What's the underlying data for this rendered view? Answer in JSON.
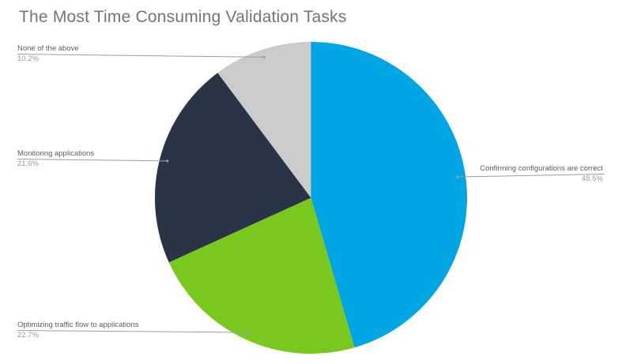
{
  "title": "The Most Time Consuming Validation Tasks",
  "chart_data": {
    "type": "pie",
    "title": "The Most Time Consuming Validation Tasks",
    "start_angle_deg": 0,
    "direction": "clockwise",
    "legend_position": "labeled-callouts",
    "background_color": "#ffffff",
    "title_color": "#757575",
    "leader_line_color": "#9b9da0",
    "slices": [
      {
        "label": "Confirming configurations are correct",
        "value": 45.5,
        "pct_label": "45.5%",
        "color": "#00a6e4"
      },
      {
        "label": "Optimizing traffic flow to applications",
        "value": 22.7,
        "pct_label": "22.7%",
        "color": "#79c81e"
      },
      {
        "label": "Monitoring applications",
        "value": 21.6,
        "pct_label": "21.6%",
        "color": "#2a3447"
      },
      {
        "label": "None of the above",
        "value": 10.2,
        "pct_label": "10.2%",
        "color": "#cbcbcb"
      }
    ]
  }
}
